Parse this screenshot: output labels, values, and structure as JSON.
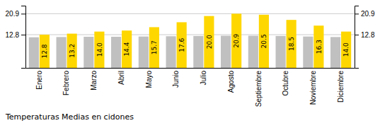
{
  "chart_data": {
    "type": "bar",
    "title": "Temperaturas Medias en cidones",
    "categories": [
      "Enero",
      "Febrero",
      "Marzo",
      "Abril",
      "Mayo",
      "Junio",
      "Julio",
      "Agosto",
      "Septiembre",
      "Octubre",
      "Noviembre",
      "Diciembre"
    ],
    "series": [
      {
        "color": "#C0C0C0",
        "values": [
          11.8,
          11.9,
          12.0,
          12.0,
          12.1,
          12.2,
          12.3,
          12.4,
          12.4,
          12.3,
          12.1,
          11.9
        ]
      },
      {
        "color": "#FFD700",
        "values": [
          12.8,
          13.2,
          14.0,
          14.4,
          15.7,
          17.6,
          20.0,
          20.9,
          20.5,
          18.5,
          16.3,
          14.0
        ],
        "data_labels": true,
        "value_labels": [
          "12.8",
          "13.2",
          "14.0",
          "14.4",
          "15.7",
          "17.6",
          "20.0",
          "20.9",
          "20.5",
          "18.5",
          "16.3",
          "14.0"
        ]
      }
    ],
    "ylim": [
      0,
      24.0
    ],
    "yticks": [
      12.8,
      20.9
    ],
    "grid": true
  }
}
